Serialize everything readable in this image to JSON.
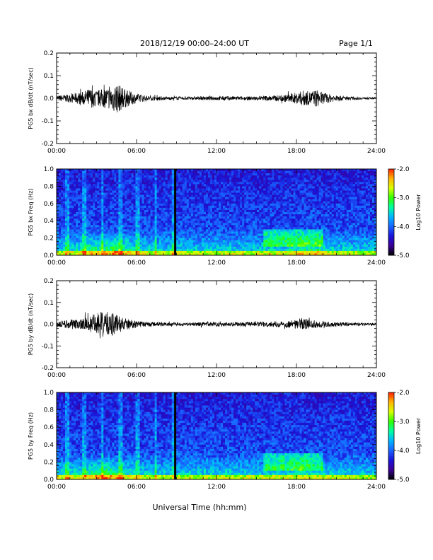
{
  "header": {
    "title": "2018/12/19  00:00–24:00 UT",
    "page": "Page 1/1"
  },
  "colors": {
    "trace": "#000000",
    "frame": "#000000",
    "colormap": [
      "#000000",
      "#3b0096",
      "#1a14d8",
      "#1a63ff",
      "#00b4ff",
      "#00ffa0",
      "#30ff00",
      "#d8ff00",
      "#ffb400",
      "#ff2000"
    ]
  },
  "chart_data": [
    {
      "type": "line",
      "panel": "ts1",
      "ylabel": "PG5 bx dB/dt (nT/sec)",
      "ylim": [
        -0.2,
        0.2
      ],
      "yticks": [
        "0.2",
        "0.1",
        "0.0",
        "-0.1",
        "-0.2"
      ],
      "xlim_hours": [
        0,
        24
      ],
      "xticks": [
        "00:00",
        "06:00",
        "12:00",
        "18:00",
        "24:00"
      ],
      "envelope": {
        "hours": [
          0,
          1,
          2,
          2.5,
          3,
          4,
          4.5,
          5,
          6,
          7,
          8,
          9,
          10,
          11,
          12,
          13,
          14,
          15,
          16,
          17,
          18,
          18.5,
          19,
          19.5,
          20,
          21,
          22,
          23,
          24
        ],
        "amplitude": [
          0.012,
          0.018,
          0.03,
          0.045,
          0.035,
          0.05,
          0.07,
          0.045,
          0.02,
          0.01,
          0.008,
          0.007,
          0.007,
          0.008,
          0.009,
          0.009,
          0.008,
          0.009,
          0.012,
          0.015,
          0.025,
          0.035,
          0.03,
          0.04,
          0.025,
          0.012,
          0.008,
          0.005,
          0.004
        ]
      }
    },
    {
      "type": "heatmap",
      "panel": "spec1",
      "ylabel": "PG5 bx Freq (Hz)",
      "ylim": [
        0.0,
        1.0
      ],
      "yticks": [
        "1.0",
        "0.8",
        "0.6",
        "0.4",
        "0.2",
        "0.0"
      ],
      "xlim_hours": [
        0,
        24
      ],
      "xticks": [
        "00:00",
        "06:00",
        "12:00",
        "18:00",
        "24:00"
      ],
      "gap_hour": 8.9,
      "colorbar": {
        "label": "Log10 Power",
        "range": [
          -5.0,
          -2.0
        ],
        "ticks": [
          "-2.0",
          "-3.0",
          "-4.0",
          "-5.0"
        ]
      }
    },
    {
      "type": "line",
      "panel": "ts2",
      "ylabel": "PG5 by dB/dt (nT/sec)",
      "ylim": [
        -0.2,
        0.2
      ],
      "yticks": [
        "0.2",
        "0.1",
        "0.0",
        "-0.1",
        "-0.2"
      ],
      "xlim_hours": [
        0,
        24
      ],
      "xticks": [
        "00:00",
        "06:00",
        "12:00",
        "18:00",
        "24:00"
      ],
      "envelope": {
        "hours": [
          0,
          1,
          2,
          2.5,
          3,
          3.5,
          4,
          4.5,
          5,
          6,
          7,
          8,
          9,
          10,
          11,
          12,
          13,
          14,
          15,
          16,
          17,
          18,
          18.5,
          19,
          20,
          21,
          22,
          23,
          24
        ],
        "amplitude": [
          0.015,
          0.02,
          0.025,
          0.04,
          0.05,
          0.06,
          0.055,
          0.05,
          0.03,
          0.015,
          0.01,
          0.008,
          0.007,
          0.008,
          0.009,
          0.01,
          0.01,
          0.009,
          0.01,
          0.012,
          0.015,
          0.02,
          0.025,
          0.02,
          0.015,
          0.01,
          0.008,
          0.006,
          0.005
        ]
      }
    },
    {
      "type": "heatmap",
      "panel": "spec2",
      "ylabel": "PG5 by Freq (Hz)",
      "ylim": [
        0.0,
        1.0
      ],
      "yticks": [
        "1.0",
        "0.8",
        "0.6",
        "0.4",
        "0.2",
        "0.0"
      ],
      "xlim_hours": [
        0,
        24
      ],
      "xticks": [
        "00:00",
        "06:00",
        "12:00",
        "18:00",
        "24:00"
      ],
      "gap_hour": 8.9,
      "colorbar": {
        "label": "Log10 Power",
        "range": [
          -5.0,
          -2.0
        ],
        "ticks": [
          "-2.0",
          "-3.0",
          "-4.0",
          "-5.0"
        ]
      }
    }
  ],
  "footer": {
    "xlabel": "Universal Time (hh:mm)"
  }
}
